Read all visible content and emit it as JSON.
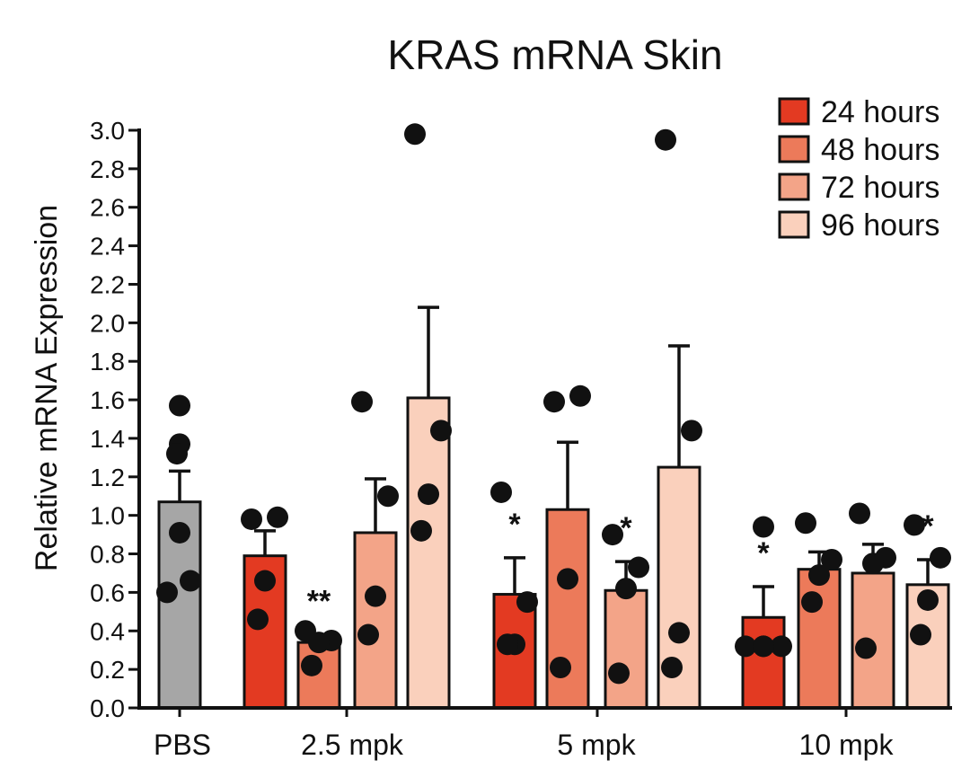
{
  "chart_data": {
    "type": "bar",
    "title": "KRAS mRNA Skin",
    "ylabel": "Relative mRNA Expression",
    "xlabel": "",
    "ylim": [
      0,
      3.0
    ],
    "ytick_step": 0.2,
    "groups": [
      "PBS",
      "2.5 mpk",
      "5 mpk",
      "10 mpk"
    ],
    "legend": {
      "placement": "top-right",
      "entries": [
        {
          "label": "24 hours",
          "color": "#e33a22"
        },
        {
          "label": "48 hours",
          "color": "#ec7a5a"
        },
        {
          "label": "72 hours",
          "color": "#f3a488"
        },
        {
          "label": "96 hours",
          "color": "#fad0bc"
        }
      ]
    },
    "bars": [
      {
        "group": "PBS",
        "series": "",
        "color": "#a6a6a6",
        "mean": 1.07,
        "error": 0.16,
        "points": [
          1.57,
          1.37,
          1.32,
          0.91,
          0.66,
          0.6
        ],
        "sig": ""
      },
      {
        "group": "2.5 mpk",
        "series": "24 hours",
        "color": "#e33a22",
        "mean": 0.79,
        "error": 0.13,
        "points": [
          0.98,
          0.99,
          0.66,
          0.46
        ],
        "sig": ""
      },
      {
        "group": "2.5 mpk",
        "series": "48 hours",
        "color": "#ec7a5a",
        "mean": 0.34,
        "error": 0.04,
        "points": [
          0.4,
          0.35,
          0.34,
          0.22
        ],
        "sig": "**"
      },
      {
        "group": "2.5 mpk",
        "series": "72 hours",
        "color": "#f3a488",
        "mean": 0.91,
        "error": 0.28,
        "points": [
          1.59,
          1.1,
          0.58,
          0.38
        ],
        "sig": ""
      },
      {
        "group": "2.5 mpk",
        "series": "96 hours",
        "color": "#fad0bc",
        "mean": 1.61,
        "error": 0.47,
        "points": [
          2.98,
          1.44,
          1.11,
          0.92
        ],
        "sig": ""
      },
      {
        "group": "5 mpk",
        "series": "24 hours",
        "color": "#e33a22",
        "mean": 0.59,
        "error": 0.19,
        "points": [
          1.12,
          0.55,
          0.33,
          0.33
        ],
        "sig": "*"
      },
      {
        "group": "5 mpk",
        "series": "48 hours",
        "color": "#ec7a5a",
        "mean": 1.03,
        "error": 0.35,
        "points": [
          1.59,
          1.62,
          0.67,
          0.21
        ],
        "sig": ""
      },
      {
        "group": "5 mpk",
        "series": "72 hours",
        "color": "#f3a488",
        "mean": 0.61,
        "error": 0.15,
        "points": [
          0.9,
          0.73,
          0.62,
          0.18
        ],
        "sig": "*"
      },
      {
        "group": "5 mpk",
        "series": "96 hours",
        "color": "#fad0bc",
        "mean": 1.25,
        "error": 0.63,
        "points": [
          2.95,
          1.44,
          0.39,
          0.21
        ],
        "sig": ""
      },
      {
        "group": "10 mpk",
        "series": "24 hours",
        "color": "#e33a22",
        "mean": 0.47,
        "error": 0.16,
        "points": [
          0.94,
          0.32,
          0.32,
          0.32,
          0.32
        ],
        "sig": "*"
      },
      {
        "group": "10 mpk",
        "series": "48 hours",
        "color": "#ec7a5a",
        "mean": 0.72,
        "error": 0.09,
        "points": [
          0.96,
          0.77,
          0.69,
          0.55
        ],
        "sig": ""
      },
      {
        "group": "10 mpk",
        "series": "72 hours",
        "color": "#f3a488",
        "mean": 0.7,
        "error": 0.15,
        "points": [
          1.01,
          0.78,
          0.75,
          0.31
        ],
        "sig": ""
      },
      {
        "group": "10 mpk",
        "series": "96 hours",
        "color": "#fad0bc",
        "mean": 0.64,
        "error": 0.13,
        "points": [
          0.95,
          0.78,
          0.56,
          0.38
        ],
        "sig": "*"
      }
    ]
  }
}
